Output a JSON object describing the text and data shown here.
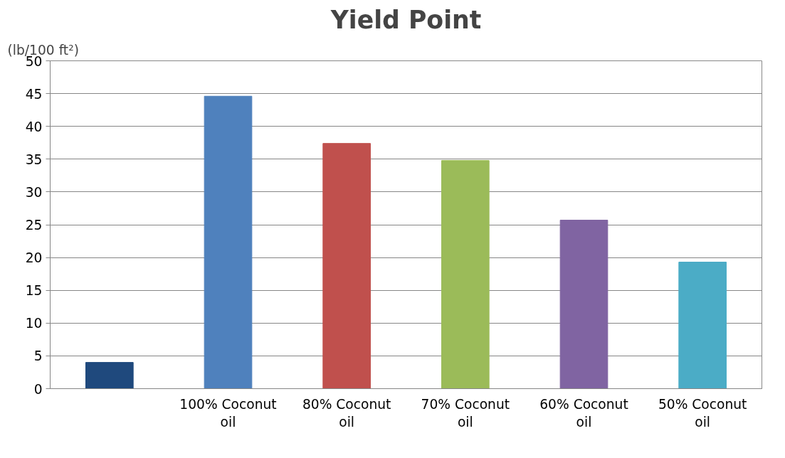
{
  "chart_data": {
    "type": "bar",
    "title": "Yield Point",
    "ylabel": "(lb/100 ft²)",
    "categories": [
      null,
      "100% Coconut oil",
      "80% Coconut oil",
      "70% Coconut oil",
      "60% Coconut oil",
      "50% Coconut oil"
    ],
    "values": [
      4.0,
      44.6,
      37.4,
      34.8,
      25.7,
      19.3
    ],
    "colors": [
      "#1f497d",
      "#4f81bd",
      "#c0504d",
      "#9bbb59",
      "#8064a2",
      "#4bacc6"
    ],
    "ylim": [
      0,
      50
    ],
    "yticks": [
      0,
      5,
      10,
      15,
      20,
      25,
      30,
      35,
      40,
      45,
      50
    ],
    "grid": "y"
  }
}
